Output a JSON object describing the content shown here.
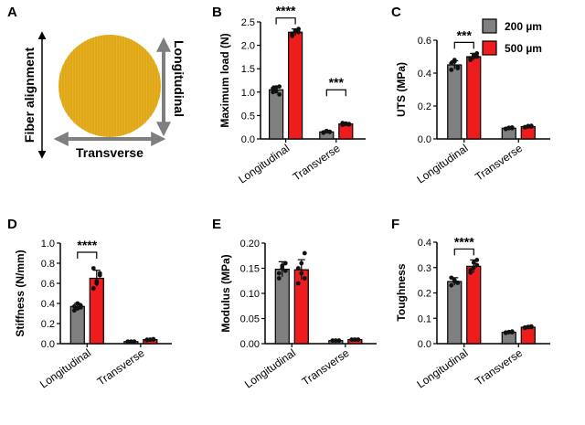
{
  "colors": {
    "s200": "#808080",
    "s500": "#ee1c1c",
    "fiber": "#e8b020",
    "arrow": "#7f7f7f"
  },
  "legend": [
    {
      "key": "s200",
      "label": "200 µm"
    },
    {
      "key": "s500",
      "label": "500 µm"
    }
  ],
  "schematic": {
    "letter": "A",
    "fiber_alignment": "Fiber alignment",
    "longitudinal": "Longitudinal",
    "transverse": "Transverse"
  },
  "chart_data": [
    {
      "letter": "B",
      "type": "bar",
      "ylabel": "Maximum load (N)",
      "ylim": [
        0,
        2.5
      ],
      "ticks": [
        "0.0",
        "0.5",
        "1.0",
        "1.5",
        "2.0",
        "2.5"
      ],
      "categories": [
        "Longitudinal",
        "Transverse"
      ],
      "series": [
        {
          "name": "200 µm",
          "values": [
            1.05,
            0.15
          ],
          "err": [
            0.08,
            0.02
          ],
          "points": [
            [
              1.0,
              1.1,
              0.95,
              1.08,
              1.02,
              1.12
            ],
            [
              0.14,
              0.16,
              0.15,
              0.13,
              0.17,
              0.15
            ]
          ]
        },
        {
          "name": "500 µm",
          "values": [
            2.28,
            0.32
          ],
          "err": [
            0.07,
            0.02
          ],
          "points": [
            [
              2.2,
              2.3,
              2.35,
              2.25,
              2.32,
              2.28
            ],
            [
              0.3,
              0.33,
              0.31,
              0.34,
              0.32,
              0.32
            ]
          ]
        }
      ],
      "significance": [
        {
          "category": 0,
          "label": "****"
        },
        {
          "category": 1,
          "label": "***"
        }
      ]
    },
    {
      "letter": "C",
      "type": "bar",
      "ylabel": "UTS (MPa)",
      "ylim": [
        0,
        0.6
      ],
      "ticks": [
        "0.0",
        "0.2",
        "0.4",
        "0.6"
      ],
      "categories": [
        "Longitudinal",
        "Transverse"
      ],
      "series": [
        {
          "name": "200 µm",
          "values": [
            0.45,
            0.065
          ],
          "err": [
            0.025,
            0.005
          ],
          "points": [
            [
              0.42,
              0.47,
              0.44,
              0.46,
              0.48,
              0.43
            ],
            [
              0.06,
              0.065,
              0.07,
              0.062,
              0.068,
              0.065
            ]
          ]
        },
        {
          "name": "500 µm",
          "values": [
            0.5,
            0.075
          ],
          "err": [
            0.02,
            0.005
          ],
          "points": [
            [
              0.48,
              0.51,
              0.52,
              0.49,
              0.5,
              0.5
            ],
            [
              0.07,
              0.075,
              0.08,
              0.072,
              0.078,
              0.075
            ]
          ]
        }
      ],
      "significance": [
        {
          "category": 0,
          "label": "***"
        }
      ]
    },
    {
      "letter": "D",
      "type": "bar",
      "ylabel": "Stiffness (N/mm)",
      "ylim": [
        0,
        1.0
      ],
      "ticks": [
        "0.0",
        "0.2",
        "0.4",
        "0.6",
        "0.8",
        "1.0"
      ],
      "categories": [
        "Longitudinal",
        "Transverse"
      ],
      "series": [
        {
          "name": "200 µm",
          "values": [
            0.37,
            0.02
          ],
          "err": [
            0.03,
            0.003
          ],
          "points": [
            [
              0.33,
              0.35,
              0.38,
              0.37,
              0.4,
              0.36
            ],
            [
              0.02,
              0.02,
              0.02,
              0.02,
              0.02,
              0.02
            ]
          ]
        },
        {
          "name": "500 µm",
          "values": [
            0.65,
            0.04
          ],
          "err": [
            0.08,
            0.005
          ],
          "points": [
            [
              0.55,
              0.6,
              0.68,
              0.75,
              0.62,
              0.7
            ],
            [
              0.035,
              0.04,
              0.045,
              0.04,
              0.04,
              0.04
            ]
          ]
        }
      ],
      "significance": [
        {
          "category": 0,
          "label": "****"
        }
      ]
    },
    {
      "letter": "E",
      "type": "bar",
      "ylabel": "Modulus (MPa)",
      "ylim": [
        0,
        0.2
      ],
      "ticks": [
        "0.00",
        "0.05",
        "0.10",
        "0.15",
        "0.20"
      ],
      "categories": [
        "Longitudinal",
        "Transverse"
      ],
      "series": [
        {
          "name": "200 µm",
          "values": [
            0.148,
            0.006
          ],
          "err": [
            0.015,
            0.001
          ],
          "points": [
            [
              0.13,
              0.15,
              0.16,
              0.14,
              0.155,
              0.145
            ],
            [
              0.006,
              0.006,
              0.006,
              0.006,
              0.006,
              0.006
            ]
          ]
        },
        {
          "name": "500 µm",
          "values": [
            0.147,
            0.008
          ],
          "err": [
            0.02,
            0.001
          ],
          "points": [
            [
              0.12,
              0.14,
              0.18,
              0.15,
              0.16,
              0.13
            ],
            [
              0.008,
              0.008,
              0.008,
              0.008,
              0.008,
              0.008
            ]
          ]
        }
      ],
      "significance": []
    },
    {
      "letter": "F",
      "type": "bar",
      "ylabel": "Toughness",
      "ylim": [
        0,
        0.4
      ],
      "ticks": [
        "0.0",
        "0.1",
        "0.2",
        "0.3",
        "0.4"
      ],
      "categories": [
        "Longitudinal",
        "Transverse"
      ],
      "series": [
        {
          "name": "200 µm",
          "values": [
            0.245,
            0.045
          ],
          "err": [
            0.015,
            0.003
          ],
          "points": [
            [
              0.23,
              0.25,
              0.24,
              0.26,
              0.245,
              0.24
            ],
            [
              0.042,
              0.045,
              0.048,
              0.044,
              0.046,
              0.045
            ]
          ]
        },
        {
          "name": "500 µm",
          "values": [
            0.305,
            0.065
          ],
          "err": [
            0.025,
            0.003
          ],
          "points": [
            [
              0.28,
              0.3,
              0.33,
              0.29,
              0.32,
              0.31
            ],
            [
              0.062,
              0.065,
              0.068,
              0.064,
              0.066,
              0.065
            ]
          ]
        }
      ],
      "significance": [
        {
          "category": 0,
          "label": "****"
        }
      ]
    }
  ]
}
